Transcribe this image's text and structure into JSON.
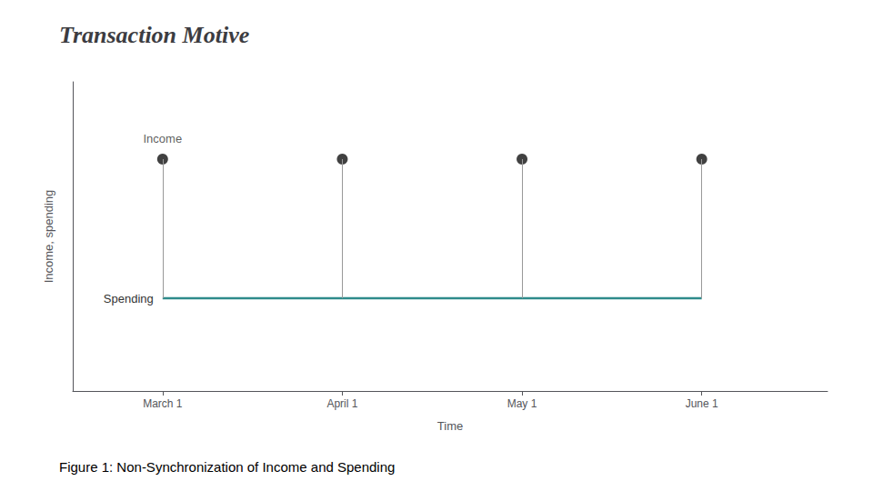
{
  "chart_data": {
    "type": "scatter",
    "title": "Transaction Motive",
    "caption": "Figure 1: Non-Synchronization of Income and Spending",
    "x": [
      1,
      2,
      3,
      4
    ],
    "series": [
      {
        "name": "Income",
        "type": "scatter",
        "color": "#111111",
        "values": [
          0.75,
          0.75,
          0.75,
          0.75
        ]
      },
      {
        "name": "Spending",
        "type": "line",
        "color": "#2e8b8b",
        "values": [
          0.3,
          0.3,
          0.3,
          0.3
        ]
      }
    ],
    "xlabel": "Time",
    "ylabel": "Income, spending",
    "xlim": [
      0.5,
      4.7
    ],
    "xticks": [
      {
        "value": 1,
        "label": "March 1"
      },
      {
        "value": 2,
        "label": "April 1"
      },
      {
        "value": 3,
        "label": "May 1"
      },
      {
        "value": 4,
        "label": "June 1"
      }
    ],
    "ylim": [
      0,
      1
    ],
    "tick_labels": "x",
    "grid": false
  }
}
